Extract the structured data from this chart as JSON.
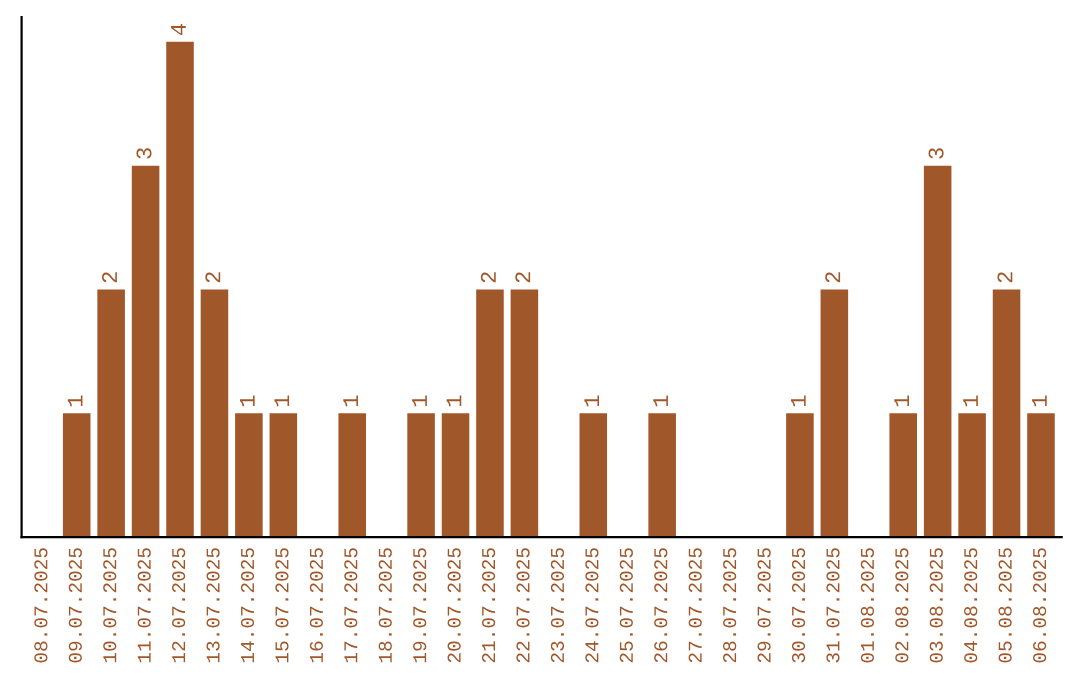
{
  "chart_data": {
    "type": "bar",
    "categories": [
      "08.07.2025",
      "09.07.2025",
      "10.07.2025",
      "11.07.2025",
      "12.07.2025",
      "13.07.2025",
      "14.07.2025",
      "15.07.2025",
      "16.07.2025",
      "17.07.2025",
      "18.07.2025",
      "19.07.2025",
      "20.07.2025",
      "21.07.2025",
      "22.07.2025",
      "23.07.2025",
      "24.07.2025",
      "25.07.2025",
      "26.07.2025",
      "27.07.2025",
      "28.07.2025",
      "29.07.2025",
      "30.07.2025",
      "31.07.2025",
      "01.08.2025",
      "02.08.2025",
      "03.08.2025",
      "04.08.2025",
      "05.08.2025",
      "06.08.2025"
    ],
    "values": [
      0,
      1,
      2,
      3,
      4,
      2,
      1,
      1,
      0,
      1,
      0,
      1,
      1,
      2,
      2,
      0,
      1,
      0,
      1,
      0,
      0,
      0,
      1,
      2,
      0,
      1,
      3,
      1,
      2,
      1
    ],
    "value_labels": [
      null,
      "1",
      "2",
      "3",
      "4",
      "2",
      "1",
      "1",
      null,
      "1",
      null,
      "1",
      "1",
      "2",
      "2",
      null,
      "1",
      null,
      "1",
      null,
      null,
      null,
      "1",
      "2",
      null,
      "1",
      "3",
      "1",
      "2",
      "1"
    ],
    "color": "#a0572a",
    "ylim": [
      0,
      4.2
    ],
    "tick_labels": "x",
    "grid": false
  }
}
